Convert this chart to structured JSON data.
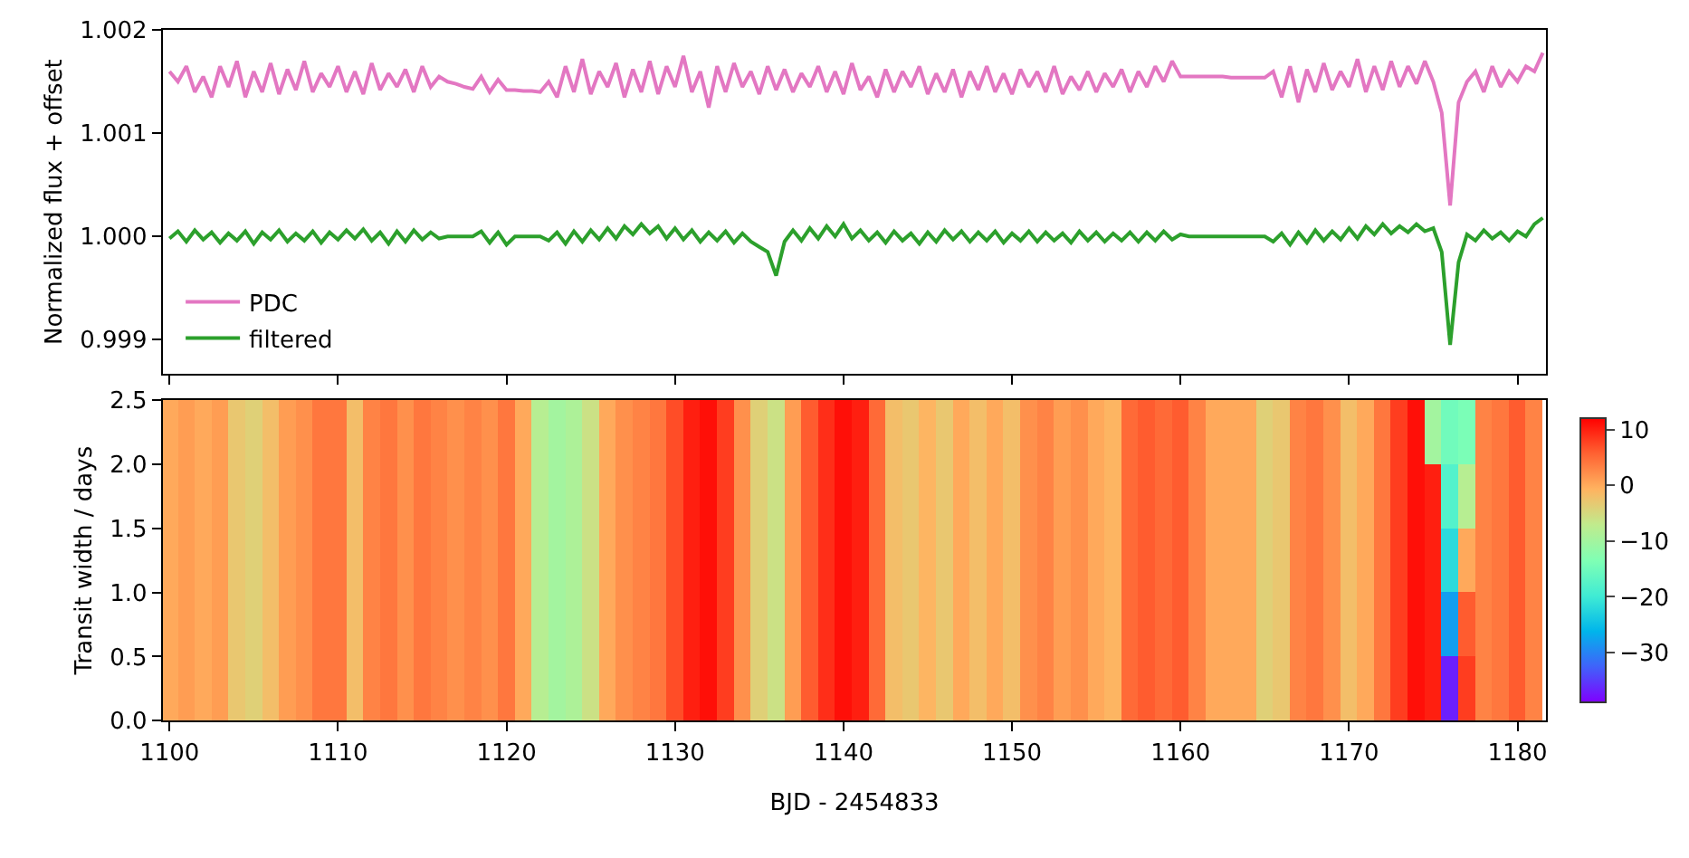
{
  "chart_data": [
    {
      "type": "line",
      "ylabel": "Normalized flux + offset",
      "legend": "bottom left",
      "tick_labels": "y",
      "xlim": [
        1099.6,
        1181.7
      ],
      "xticks": [
        {
          "value": 1100,
          "label": null
        },
        {
          "value": 1110,
          "label": null
        },
        {
          "value": 1120,
          "label": null
        },
        {
          "value": 1130,
          "label": null
        },
        {
          "value": 1140,
          "label": null
        },
        {
          "value": 1150,
          "label": null
        },
        {
          "value": 1160,
          "label": null
        },
        {
          "value": 1170,
          "label": null
        },
        {
          "value": 1180,
          "label": null
        }
      ],
      "ylim": [
        0.99867,
        1.002
      ],
      "yticks": [
        0.999,
        {
          "value": 1.0,
          "label": "1.000"
        },
        1.001,
        1.002
      ],
      "x": [
        1100,
        1100.5,
        1101,
        1101.5,
        1102,
        1102.5,
        1103,
        1103.5,
        1104,
        1104.5,
        1105,
        1105.5,
        1106,
        1106.5,
        1107,
        1107.5,
        1108,
        1108.5,
        1109,
        1109.5,
        1110,
        1110.5,
        1111,
        1111.5,
        1112,
        1112.5,
        1113,
        1113.5,
        1114,
        1114.5,
        1115,
        1115.5,
        1116,
        1116.5,
        1117,
        1117.5,
        1118,
        1118.5,
        1119,
        1119.5,
        1120,
        1120.5,
        1121,
        1121.5,
        1122,
        1122.5,
        1123,
        1123.5,
        1124,
        1124.5,
        1125,
        1125.5,
        1126,
        1126.5,
        1127,
        1127.5,
        1128,
        1128.5,
        1129,
        1129.5,
        1130,
        1130.5,
        1131,
        1131.5,
        1132,
        1132.5,
        1133,
        1133.5,
        1134,
        1134.5,
        1135,
        1135.5,
        1136,
        1136.5,
        1137,
        1137.5,
        1138,
        1138.5,
        1139,
        1139.5,
        1140,
        1140.5,
        1141,
        1141.5,
        1142,
        1142.5,
        1143,
        1143.5,
        1144,
        1144.5,
        1145,
        1145.5,
        1146,
        1146.5,
        1147,
        1147.5,
        1148,
        1148.5,
        1149,
        1149.5,
        1150,
        1150.5,
        1151,
        1151.5,
        1152,
        1152.5,
        1153,
        1153.5,
        1154,
        1154.5,
        1155,
        1155.5,
        1156,
        1156.5,
        1157,
        1157.5,
        1158,
        1158.5,
        1159,
        1159.5,
        1160,
        1160.5,
        1161,
        1161.5,
        1162,
        1162.5,
        1163,
        1163.5,
        1164,
        1164.5,
        1165,
        1165.5,
        1166,
        1166.5,
        1167,
        1167.5,
        1168,
        1168.5,
        1169,
        1169.5,
        1170,
        1170.5,
        1171,
        1171.5,
        1172,
        1172.5,
        1173,
        1173.5,
        1174,
        1174.5,
        1175,
        1175.5,
        1176,
        1176.5,
        1177,
        1177.5,
        1178,
        1178.5,
        1179,
        1179.5,
        1180,
        1180.5,
        1181,
        1181.5
      ],
      "series": [
        {
          "name": "PDC",
          "color": "#e377c2",
          "values": [
            1.0016,
            1.0015,
            1.00165,
            1.0014,
            1.00155,
            1.00135,
            1.00165,
            1.00145,
            1.0017,
            1.00135,
            1.0016,
            1.0014,
            1.00168,
            1.00138,
            1.00162,
            1.00142,
            1.0017,
            1.0014,
            1.00158,
            1.00145,
            1.00165,
            1.0014,
            1.0016,
            1.00138,
            1.00168,
            1.00142,
            1.00158,
            1.00145,
            1.00162,
            1.0014,
            1.00165,
            1.00145,
            1.00155,
            1.0015,
            1.00148,
            1.00145,
            1.00143,
            1.00155,
            1.0014,
            1.00152,
            1.00142,
            1.00142,
            1.00141,
            1.00141,
            1.0014,
            1.0015,
            1.00135,
            1.00165,
            1.0014,
            1.00172,
            1.00138,
            1.0016,
            1.00145,
            1.00168,
            1.00135,
            1.00162,
            1.0014,
            1.0017,
            1.00138,
            1.00165,
            1.00145,
            1.00175,
            1.0014,
            1.0016,
            1.00125,
            1.00165,
            1.0014,
            1.00168,
            1.00145,
            1.0016,
            1.00138,
            1.00165,
            1.00142,
            1.00162,
            1.0014,
            1.00158,
            1.00145,
            1.00165,
            1.0014,
            1.0016,
            1.00138,
            1.00168,
            1.00142,
            1.00155,
            1.00135,
            1.00162,
            1.0014,
            1.0016,
            1.00145,
            1.00165,
            1.00138,
            1.00158,
            1.0014,
            1.00162,
            1.00135,
            1.0016,
            1.00142,
            1.00165,
            1.0014,
            1.00158,
            1.00138,
            1.00162,
            1.00145,
            1.0016,
            1.0014,
            1.00165,
            1.00138,
            1.00155,
            1.00142,
            1.0016,
            1.0014,
            1.00158,
            1.00145,
            1.00162,
            1.0014,
            1.0016,
            1.00145,
            1.00165,
            1.0015,
            1.0017,
            1.00155,
            1.00155,
            1.00155,
            1.00155,
            1.00155,
            1.00155,
            1.00154,
            1.00154,
            1.00154,
            1.00154,
            1.00154,
            1.0016,
            1.00135,
            1.00165,
            1.0013,
            1.00162,
            1.0014,
            1.00168,
            1.00142,
            1.0016,
            1.00145,
            1.00172,
            1.0014,
            1.00165,
            1.00142,
            1.0017,
            1.00145,
            1.00165,
            1.00148,
            1.0017,
            1.0015,
            1.0012,
            1.0003,
            1.0013,
            1.0015,
            1.0016,
            1.0014,
            1.00165,
            1.00145,
            1.0016,
            1.0015,
            1.00165,
            1.0016,
            1.00178
          ]
        },
        {
          "name": "filtered",
          "color": "#2ca02c",
          "values": [
            0.99998,
            1.00005,
            0.99995,
            1.00006,
            0.99997,
            1.00004,
            0.99994,
            1.00003,
            0.99996,
            1.00005,
            0.99993,
            1.00004,
            0.99997,
            1.00006,
            0.99995,
            1.00003,
            0.99996,
            1.00005,
            0.99994,
            1.00004,
            0.99997,
            1.00006,
            0.99998,
            1.00007,
            0.99996,
            1.00004,
            0.99993,
            1.00005,
            0.99995,
            1.00006,
            0.99997,
            1.00004,
            0.99998,
            1.0,
            1.0,
            1.0,
            1.0,
            1.00005,
            0.99994,
            1.00004,
            0.99992,
            1.0,
            1.0,
            1.0,
            1.0,
            0.99996,
            1.00004,
            0.99993,
            1.00005,
            0.99995,
            1.00006,
            0.99997,
            1.00008,
            0.99998,
            1.0001,
            1.00002,
            1.00012,
            1.00003,
            1.0001,
            0.99998,
            1.00008,
            0.99997,
            1.00006,
            0.99995,
            1.00004,
            0.99996,
            1.00005,
            0.99994,
            1.00003,
            0.99995,
            0.9999,
            0.99985,
            0.99962,
            0.99995,
            1.00006,
            0.99996,
            1.00008,
            0.99998,
            1.0001,
            1.0,
            1.00012,
            0.99998,
            1.00006,
            0.99996,
            1.00004,
            0.99994,
            1.00005,
            0.99996,
            1.00003,
            0.99993,
            1.00004,
            0.99995,
            1.00006,
            0.99997,
            1.00005,
            0.99995,
            1.00004,
            0.99996,
            1.00005,
            0.99994,
            1.00003,
            0.99996,
            1.00005,
            0.99995,
            1.00004,
            0.99996,
            1.00003,
            0.99994,
            1.00005,
            0.99996,
            1.00004,
            0.99995,
            1.00003,
            0.99996,
            1.00004,
            0.99995,
            1.00004,
            0.99996,
            1.00005,
            0.99997,
            1.00002,
            1.0,
            1.0,
            1.0,
            1.0,
            1.0,
            1.0,
            1.0,
            1.0,
            1.0,
            1.0,
            0.99995,
            1.00003,
            0.99992,
            1.00004,
            0.99994,
            1.00006,
            0.99996,
            1.00005,
            0.99997,
            1.00008,
            0.99998,
            1.0001,
            1.00002,
            1.00012,
            1.00003,
            1.0001,
            1.00004,
            1.00012,
            1.00005,
            1.00008,
            0.99985,
            0.99895,
            0.99975,
            1.00002,
            0.99996,
            1.00006,
            0.99998,
            1.00004,
            0.99996,
            1.00005,
            1.0,
            1.00012,
            1.00018
          ]
        }
      ]
    },
    {
      "type": "heatmap",
      "xlabel": "BJD - 2454833",
      "ylabel": "Transit width / days",
      "xlim": [
        1099.6,
        1181.7
      ],
      "xticks": [
        1100,
        1110,
        1120,
        1130,
        1140,
        1150,
        1160,
        1170,
        1180
      ],
      "ylim": [
        0,
        2.5
      ],
      "yticks": [
        {
          "value": 0,
          "label": "0.0"
        },
        0.5,
        {
          "value": 1,
          "label": "1.0"
        },
        1.5,
        {
          "value": 2,
          "label": "2.0"
        },
        2.5
      ],
      "clim": [
        -39,
        12
      ],
      "cticks": [
        10,
        0,
        {
          "value": -10,
          "label": "−10"
        },
        {
          "value": -20,
          "label": "−20"
        },
        {
          "value": -30,
          "label": "−30"
        }
      ],
      "x": [
        1100,
        1101,
        1102,
        1103,
        1104,
        1105,
        1106,
        1107,
        1108,
        1109,
        1110,
        1111,
        1112,
        1113,
        1114,
        1115,
        1116,
        1117,
        1118,
        1119,
        1120,
        1121,
        1122,
        1123,
        1124,
        1125,
        1126,
        1127,
        1128,
        1129,
        1130,
        1131,
        1132,
        1133,
        1134,
        1135,
        1136,
        1137,
        1138,
        1139,
        1140,
        1141,
        1142,
        1143,
        1144,
        1145,
        1146,
        1147,
        1148,
        1149,
        1150,
        1151,
        1152,
        1153,
        1154,
        1155,
        1156,
        1157,
        1158,
        1159,
        1160,
        1161,
        1162,
        1163,
        1164,
        1165,
        1166,
        1167,
        1168,
        1169,
        1170,
        1171,
        1172,
        1173,
        1174,
        1175,
        1176,
        1177,
        1178,
        1179,
        1180,
        1181
      ],
      "cells": [
        [
          0,
          1,
          0,
          1,
          -3,
          -4,
          -2,
          1,
          2,
          4,
          4,
          -2,
          3,
          4,
          2,
          4,
          3,
          2,
          3,
          2,
          4,
          0,
          -8,
          -10,
          -9,
          -6,
          0,
          2,
          3,
          4,
          7,
          10,
          11,
          8,
          2,
          -4,
          -6,
          1,
          6,
          9,
          11,
          10,
          5,
          -2,
          -3,
          -1,
          -3,
          0,
          -2,
          0,
          -2,
          2,
          3,
          1,
          2,
          0,
          -1,
          5,
          6,
          5,
          6,
          3,
          0,
          0,
          0,
          -4,
          -3,
          3,
          4,
          2,
          -2,
          0,
          4,
          8,
          11,
          -10,
          -15,
          -14,
          3,
          4,
          6,
          3
        ],
        [
          0,
          1,
          0,
          1,
          -3,
          -4,
          -2,
          1,
          2,
          4,
          4,
          -2,
          3,
          4,
          2,
          4,
          3,
          2,
          3,
          2,
          4,
          0,
          -8,
          -10,
          -9,
          -6,
          0,
          2,
          3,
          4,
          7,
          10,
          11,
          8,
          2,
          -4,
          -6,
          1,
          6,
          9,
          11,
          10,
          5,
          -2,
          -3,
          -1,
          -3,
          0,
          -2,
          0,
          -2,
          2,
          3,
          1,
          2,
          0,
          -1,
          5,
          6,
          5,
          6,
          3,
          0,
          0,
          0,
          -4,
          -3,
          3,
          4,
          2,
          -2,
          0,
          4,
          8,
          11,
          10,
          -18,
          -8,
          3,
          4,
          6,
          3
        ],
        [
          0,
          1,
          0,
          1,
          -3,
          -4,
          -2,
          1,
          2,
          4,
          4,
          -2,
          3,
          4,
          2,
          4,
          3,
          2,
          3,
          2,
          4,
          0,
          -8,
          -10,
          -9,
          -6,
          0,
          2,
          3,
          4,
          7,
          10,
          11,
          8,
          2,
          -4,
          -6,
          1,
          6,
          9,
          11,
          10,
          5,
          -2,
          -3,
          -1,
          -3,
          0,
          -2,
          0,
          -2,
          2,
          3,
          1,
          2,
          0,
          -1,
          5,
          6,
          5,
          6,
          3,
          0,
          0,
          0,
          -4,
          -3,
          3,
          4,
          2,
          -2,
          0,
          4,
          8,
          11,
          10,
          -22,
          0,
          3,
          4,
          6,
          3
        ],
        [
          0,
          1,
          0,
          1,
          -3,
          -4,
          -2,
          1,
          2,
          4,
          4,
          -2,
          3,
          4,
          2,
          4,
          3,
          2,
          3,
          2,
          4,
          0,
          -8,
          -10,
          -9,
          -6,
          0,
          2,
          3,
          4,
          7,
          10,
          11,
          8,
          2,
          -4,
          -6,
          1,
          6,
          9,
          11,
          10,
          5,
          -2,
          -3,
          -1,
          -3,
          0,
          -2,
          0,
          -2,
          2,
          3,
          1,
          2,
          0,
          -1,
          5,
          6,
          5,
          6,
          3,
          0,
          0,
          0,
          -4,
          -3,
          3,
          4,
          2,
          -2,
          0,
          4,
          8,
          11,
          10,
          -28,
          6,
          3,
          4,
          6,
          3
        ],
        [
          0,
          1,
          0,
          1,
          -3,
          -4,
          -2,
          1,
          2,
          4,
          4,
          -2,
          3,
          4,
          2,
          4,
          3,
          2,
          3,
          2,
          4,
          0,
          -8,
          -10,
          -9,
          -6,
          0,
          2,
          3,
          4,
          7,
          10,
          11,
          8,
          2,
          -4,
          -6,
          1,
          6,
          9,
          11,
          10,
          5,
          -2,
          -3,
          -1,
          -3,
          0,
          -2,
          0,
          -2,
          2,
          3,
          1,
          2,
          0,
          -1,
          5,
          6,
          5,
          6,
          3,
          0,
          0,
          0,
          -4,
          -3,
          3,
          4,
          2,
          -2,
          0,
          4,
          8,
          11,
          10,
          -37,
          8,
          3,
          4,
          6,
          3
        ]
      ]
    }
  ]
}
